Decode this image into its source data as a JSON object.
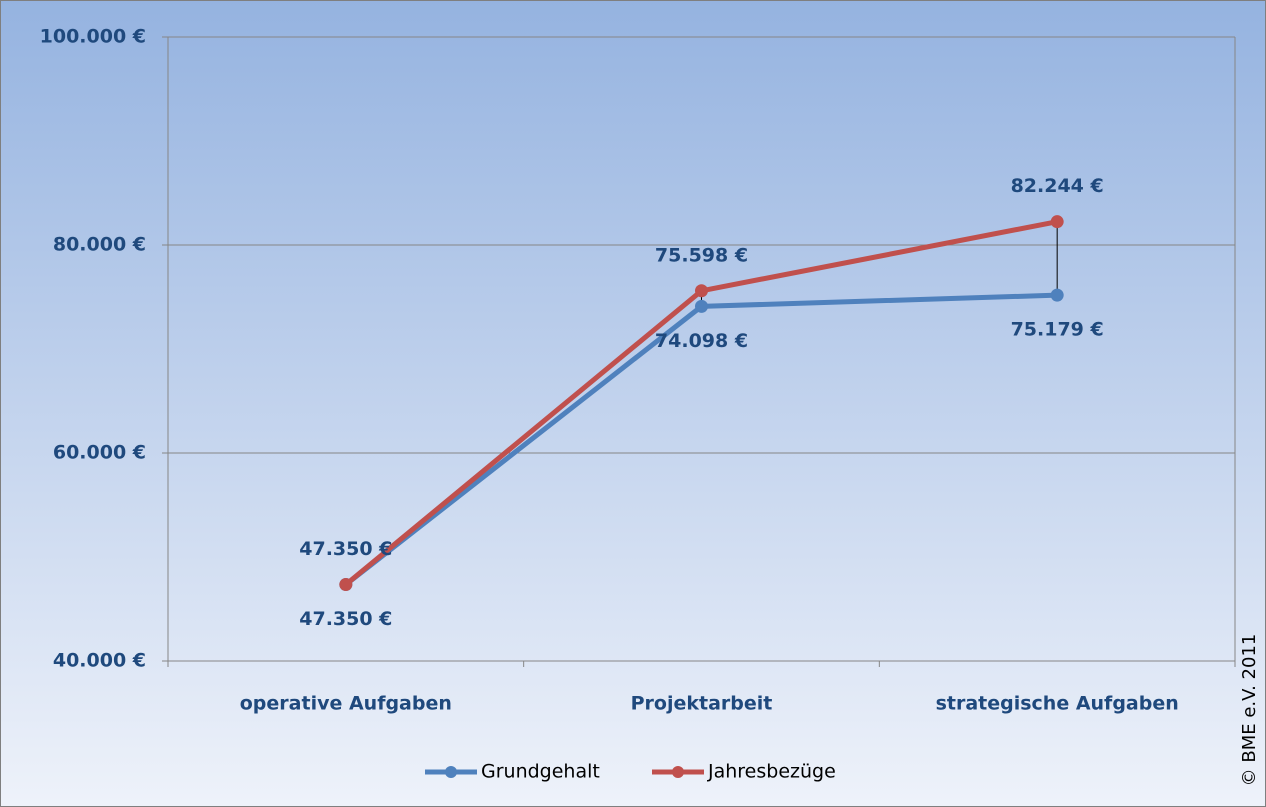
{
  "chart_data": {
    "type": "line",
    "categories": [
      "operative Aufgaben",
      "Projektarbeit",
      "strategische Aufgaben"
    ],
    "series": [
      {
        "name": "Grundgehalt",
        "color": "#4f81bd",
        "values": [
          47350,
          74098,
          75179
        ],
        "value_labels": [
          "47.350 €",
          "74.098 €",
          "75.179 €"
        ]
      },
      {
        "name": "Jahresbezüge",
        "color": "#c0504d",
        "values": [
          47350,
          75598,
          82244
        ],
        "value_labels": [
          "47.350 €",
          "75.598 €",
          "82.244 €"
        ]
      }
    ],
    "ylim": [
      40000,
      100000
    ],
    "yticks": [
      {
        "value": 40000,
        "label": "40.000 €"
      },
      {
        "value": 60000,
        "label": "60.000 €"
      },
      {
        "value": 80000,
        "label": "80.000 €"
      },
      {
        "value": 100000,
        "label": "100.000 €"
      }
    ],
    "grid": true,
    "high_low_lines": true,
    "legend": "bottom",
    "copyright": "© BME e.V. 2011"
  }
}
